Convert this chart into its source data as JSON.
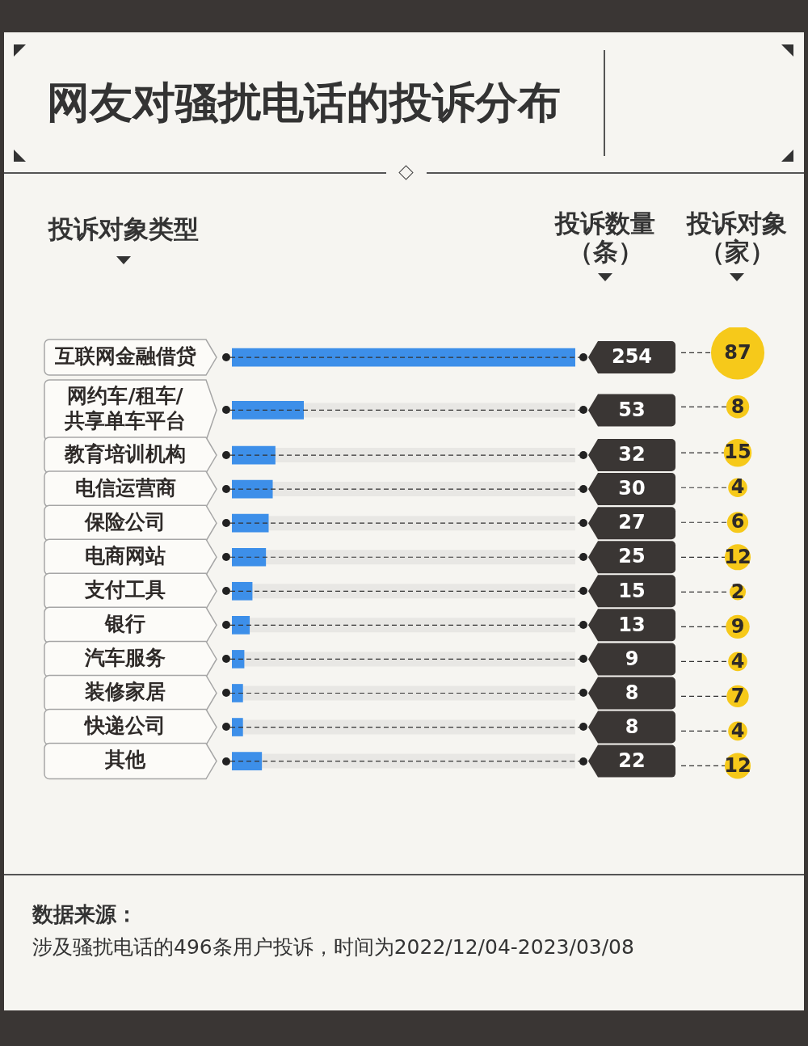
{
  "chart_data": [
    {
      "type": "bar",
      "orientation": "horizontal",
      "title": "网友对骚扰电话的投诉分布",
      "ylabel": "投诉对象类型",
      "xlabel": "投诉数量（条）",
      "categories": [
        "互联网金融借贷",
        "网约车/租车/共享单车平台",
        "教育培训机构",
        "电信运营商",
        "保险公司",
        "电商网站",
        "支付工具",
        "银行",
        "汽车服务",
        "装修家居",
        "快递公司",
        "其他"
      ],
      "values": [
        254,
        53,
        32,
        30,
        27,
        25,
        15,
        13,
        9,
        8,
        8,
        22
      ],
      "color": "#3d8fe9",
      "data_labels": true,
      "tick_labels": "y",
      "grid": "y",
      "annotations": [
        "数据来源：",
        "涉及骚扰电话的496条用户投诉，时间为2022/12/04-2023/03/08"
      ]
    },
    {
      "type": "other",
      "title": "投诉对象（家）",
      "values": [
        87,
        8,
        15,
        4,
        6,
        12,
        2,
        9,
        4,
        7,
        4,
        12
      ],
      "color": "#f6c91a",
      "data_labels": true
    }
  ]
}
